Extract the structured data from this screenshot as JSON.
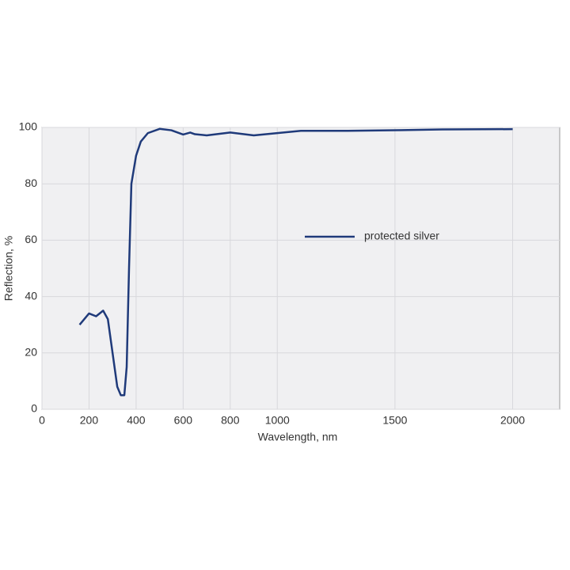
{
  "chart_data": {
    "type": "line",
    "x_label": "Wavelength, nm",
    "y_label": "Reflection, %",
    "x": [
      160,
      200,
      230,
      260,
      280,
      300,
      320,
      335,
      350,
      360,
      370,
      380,
      400,
      420,
      450,
      500,
      550,
      600,
      630,
      650,
      700,
      800,
      900,
      1000,
      1100,
      1300,
      1500,
      1700,
      2000
    ],
    "series": [
      {
        "name": "protected silver",
        "color": "#1f3a7a",
        "values": [
          30,
          34,
          33,
          35,
          32,
          20,
          8,
          5,
          5,
          15,
          50,
          80,
          90,
          95,
          98,
          99.5,
          99,
          97.5,
          98.2,
          97.6,
          97.2,
          98.2,
          97.2,
          98,
          98.8,
          98.8,
          99,
          99.3,
          99.4
        ]
      }
    ],
    "xlim": [
      0,
      2200
    ],
    "xticks": [
      0,
      200,
      400,
      600,
      800,
      1000,
      1500,
      2000
    ],
    "ylim": [
      0,
      100
    ],
    "yticks": [
      0,
      20,
      40,
      60,
      80,
      100
    ],
    "grid": true,
    "legend": "center",
    "background": "#f0f0f2"
  }
}
